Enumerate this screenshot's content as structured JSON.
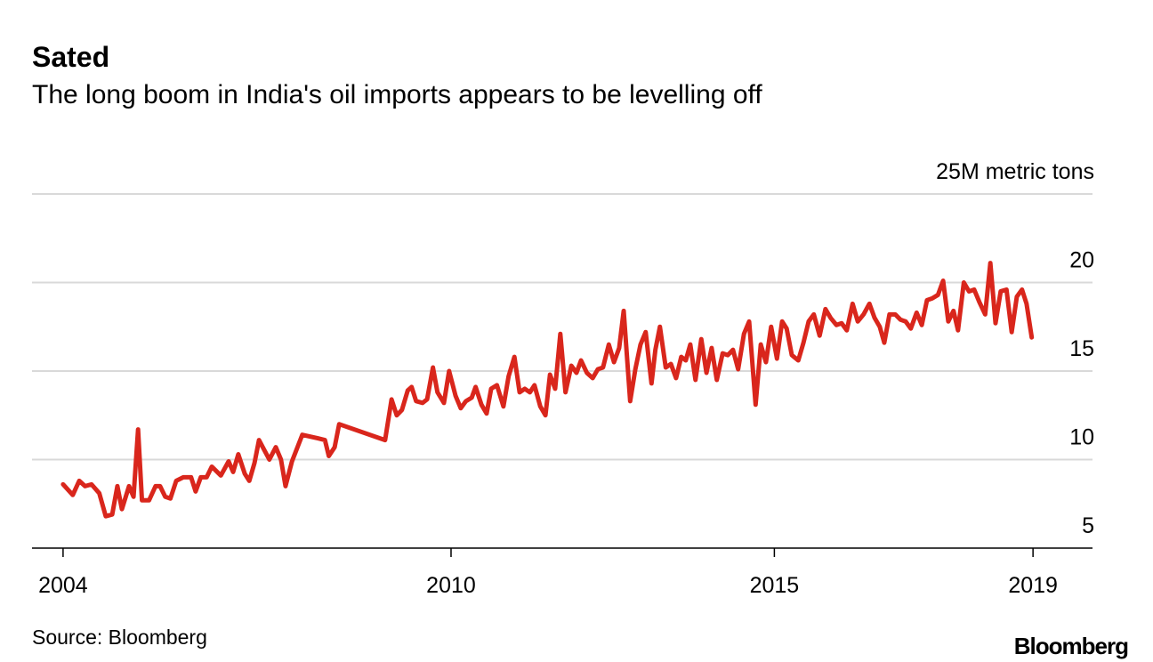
{
  "chart_data": {
    "type": "line",
    "title": "Sated",
    "subtitle": "The long boom in India's oil imports appears to be levelling off",
    "source": "Source: Bloomberg",
    "logo": "Bloomberg",
    "color": "#d9261c",
    "grid": true,
    "xlim": [
      2003.52,
      2019.92
    ],
    "xticks": [
      2004,
      2010,
      2015,
      2019
    ],
    "ylim": [
      5,
      25
    ],
    "yticks": [
      5,
      10,
      15,
      20,
      {
        "value": 25,
        "label": "25M metric tons"
      }
    ],
    "x": [
      2004.0,
      2004.15,
      2004.25,
      2004.34,
      2004.44,
      2004.56,
      2004.66,
      2004.76,
      2004.84,
      2004.91,
      2005.02,
      2005.09,
      2005.16,
      2005.22,
      2005.33,
      2005.43,
      2005.5,
      2005.58,
      2005.66,
      2005.75,
      2005.86,
      2005.98,
      2006.05,
      2006.13,
      2006.22,
      2006.3,
      2006.44,
      2006.56,
      2006.63,
      2006.71,
      2006.81,
      2006.88,
      2006.96,
      2007.03,
      2007.19,
      2007.29,
      2007.37,
      2007.44,
      2007.54,
      2007.7,
      2007.94,
      2008.05,
      2008.11,
      2008.2,
      2008.27,
      2008.98,
      2009.08,
      2009.16,
      2009.24,
      2009.33,
      2009.39,
      2009.46,
      2009.56,
      2009.63,
      2009.72,
      2009.79,
      2009.89,
      2009.97,
      2010.07,
      2010.15,
      2010.23,
      2010.32,
      2010.38,
      2010.47,
      2010.55,
      2010.62,
      2010.71,
      2010.81,
      2010.89,
      2010.98,
      2011.06,
      2011.14,
      2011.22,
      2011.29,
      2011.38,
      2011.46,
      2011.53,
      2011.61,
      2011.69,
      2011.77,
      2011.86,
      2011.94,
      2012.01,
      2012.1,
      2012.19,
      2012.27,
      2012.35,
      2012.44,
      2012.52,
      2012.6,
      2012.67,
      2012.77,
      2012.85,
      2012.93,
      2013.01,
      2013.1,
      2013.16,
      2013.23,
      2013.32,
      2013.4,
      2013.48,
      2013.56,
      2013.63,
      2013.7,
      2013.78,
      2013.87,
      2013.95,
      2014.03,
      2014.11,
      2014.2,
      2014.28,
      2014.36,
      2014.44,
      2014.53,
      2014.61,
      2014.71,
      2014.79,
      2014.87,
      2014.95,
      2015.04,
      2015.12,
      2015.19,
      2015.27,
      2015.37,
      2015.45,
      2015.53,
      2015.61,
      2015.7,
      2015.79,
      2015.87,
      2015.96,
      2016.04,
      2016.12,
      2016.21,
      2016.29,
      2016.38,
      2016.47,
      2016.55,
      2016.63,
      2016.7,
      2016.78,
      2016.87,
      2016.95,
      2017.03,
      2017.11,
      2017.2,
      2017.28,
      2017.36,
      2017.44,
      2017.53,
      2017.61,
      2017.69,
      2017.77,
      2017.84,
      2017.93,
      2018.01,
      2018.09,
      2018.17,
      2018.26,
      2018.34,
      2018.42,
      2018.5,
      2018.59,
      2018.67,
      2018.75,
      2018.83,
      2018.9,
      2018.98
    ],
    "values": [
      8.6,
      8.0,
      8.8,
      8.5,
      8.6,
      8.1,
      6.8,
      6.9,
      8.5,
      7.2,
      8.5,
      7.9,
      11.7,
      7.7,
      7.7,
      8.5,
      8.5,
      7.9,
      7.8,
      8.8,
      9.0,
      9.0,
      8.2,
      9.0,
      9.0,
      9.6,
      9.1,
      9.9,
      9.3,
      10.3,
      9.2,
      8.8,
      9.8,
      11.1,
      10.0,
      10.7,
      10.0,
      8.5,
      9.9,
      11.4,
      11.2,
      11.1,
      10.2,
      10.7,
      12.0,
      11.1,
      13.4,
      12.5,
      12.8,
      13.9,
      14.1,
      13.3,
      13.2,
      13.4,
      15.2,
      13.8,
      13.2,
      15.0,
      13.6,
      12.9,
      13.3,
      13.5,
      14.1,
      13.1,
      12.6,
      14.0,
      14.2,
      13.0,
      14.7,
      15.8,
      13.8,
      14.0,
      13.8,
      14.2,
      13.0,
      12.5,
      14.8,
      14.0,
      17.1,
      13.8,
      15.3,
      14.9,
      15.6,
      14.9,
      14.6,
      15.1,
      15.2,
      16.5,
      15.5,
      16.3,
      18.4,
      13.3,
      15.1,
      16.5,
      17.2,
      14.3,
      16.2,
      17.5,
      15.2,
      15.4,
      14.6,
      15.8,
      15.6,
      16.5,
      14.5,
      16.8,
      14.9,
      16.3,
      14.5,
      16.0,
      15.9,
      16.2,
      15.1,
      17.1,
      17.8,
      13.1,
      16.5,
      15.5,
      17.5,
      15.7,
      17.8,
      17.4,
      15.9,
      15.6,
      16.6,
      17.8,
      18.2,
      17.0,
      18.5,
      18.0,
      17.6,
      17.7,
      17.3,
      18.8,
      17.8,
      18.2,
      18.8,
      18.0,
      17.5,
      16.6,
      18.2,
      18.2,
      17.9,
      17.8,
      17.4,
      18.3,
      17.6,
      19.0,
      19.1,
      19.3,
      20.1,
      17.8,
      18.4,
      17.3,
      20.0,
      19.5,
      19.6,
      18.9,
      18.2,
      21.1,
      17.7,
      19.5,
      19.6,
      17.2,
      19.2,
      19.6,
      18.8,
      16.9
    ]
  }
}
